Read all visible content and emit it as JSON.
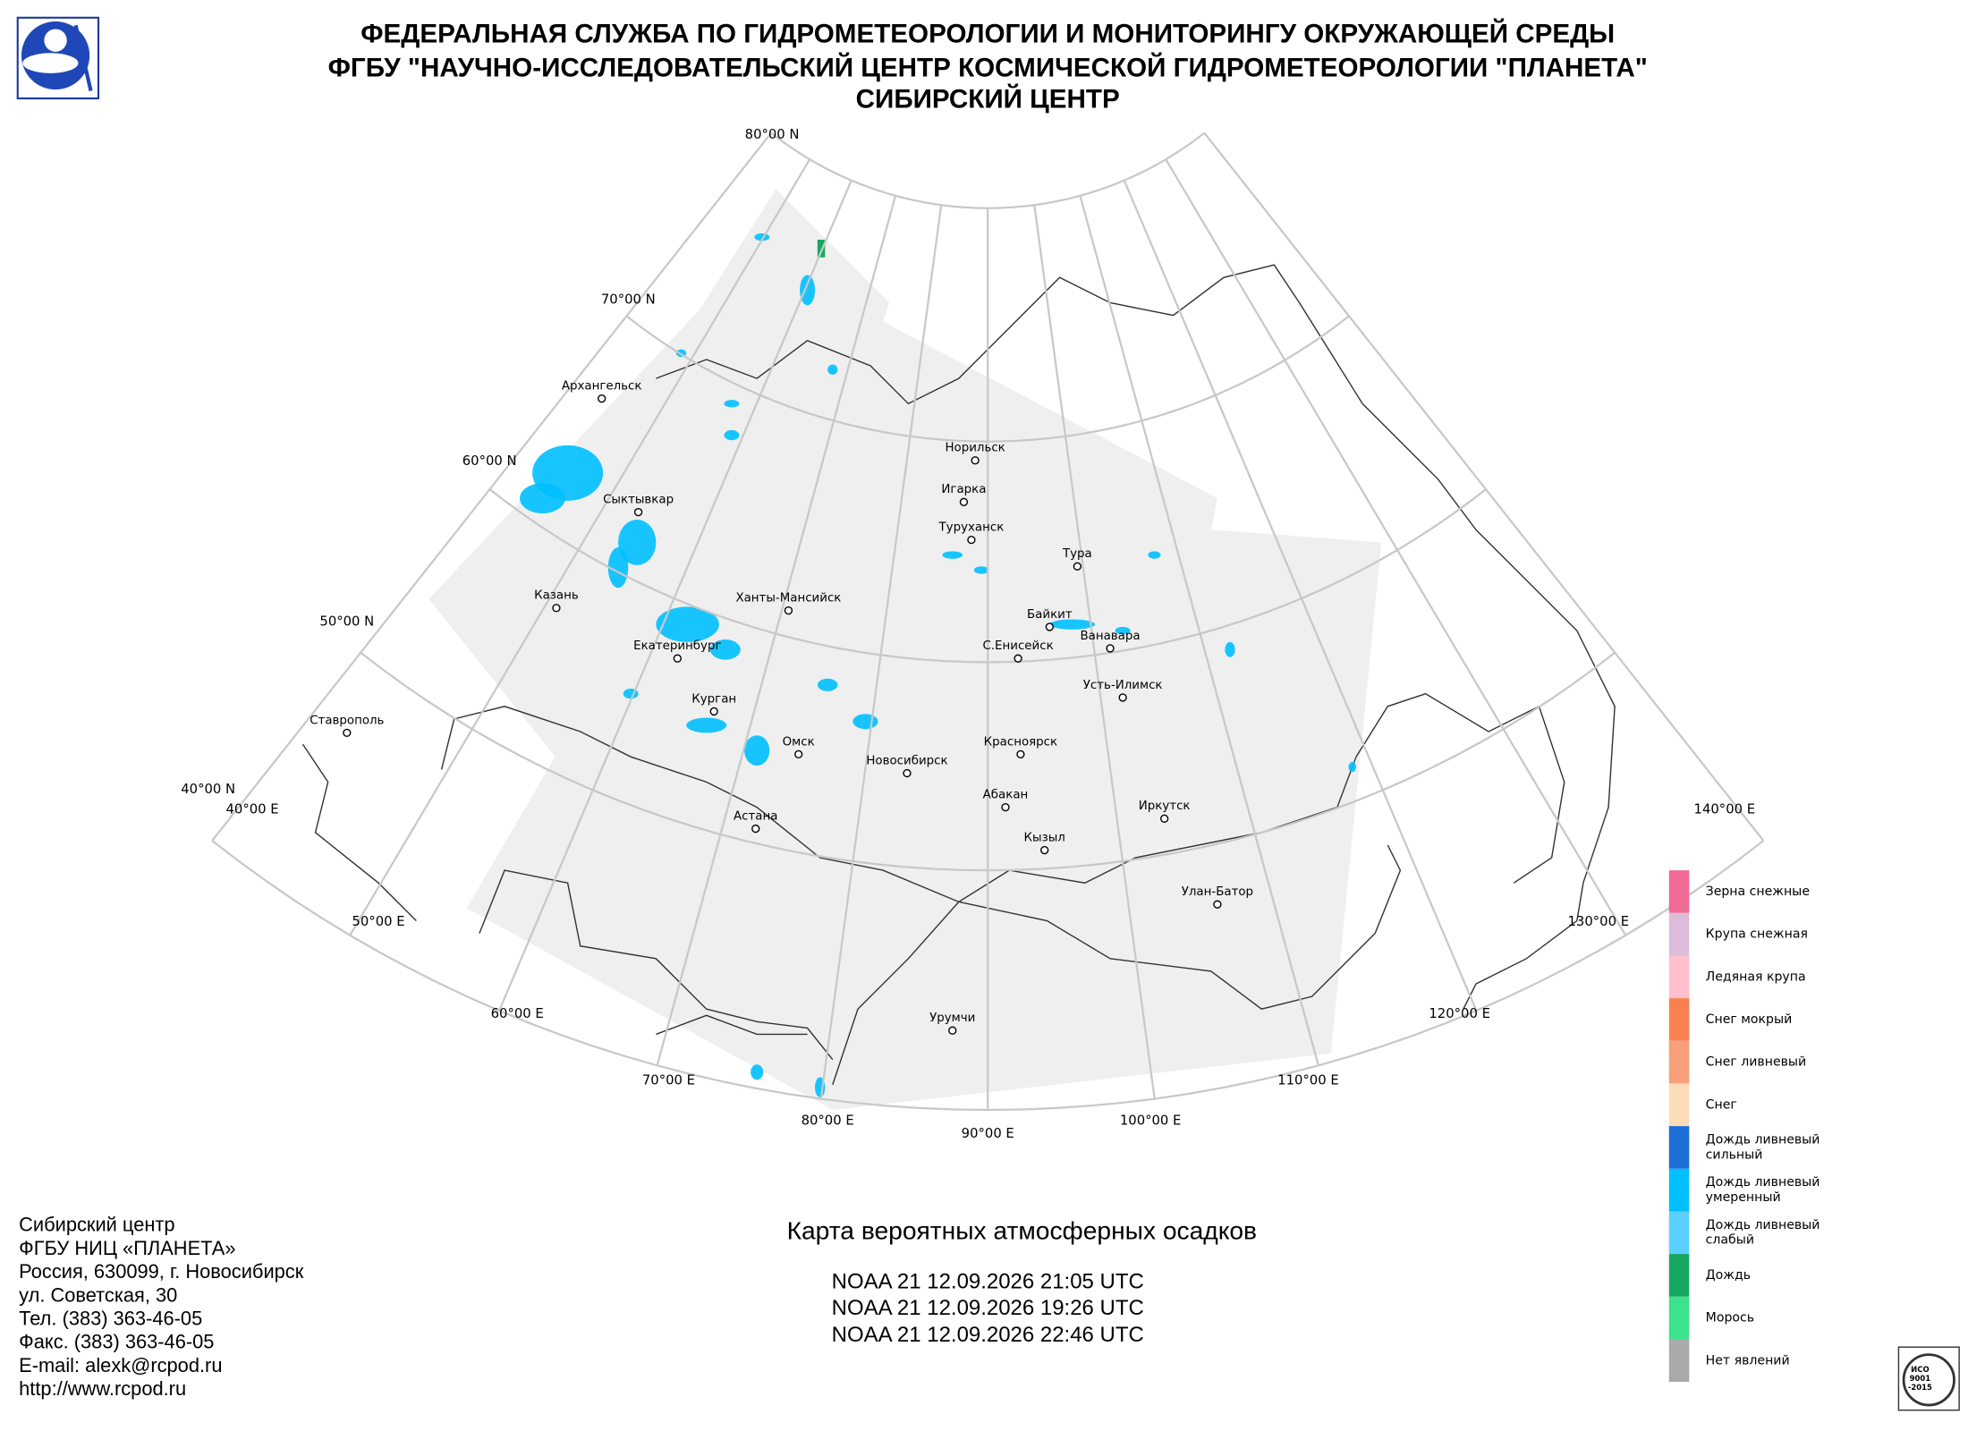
{
  "header": {
    "lines": [
      "ФЕДЕРАЛЬНАЯ СЛУЖБА ПО ГИДРОМЕТЕОРОЛОГИИ И МОНИТОРИНГУ ОКРУЖАЮЩЕЙ СРЕДЫ",
      "ФГБУ \"НАУЧНО-ИССЛЕДОВАТЕЛЬСКИЙ ЦЕНТР КОСМИЧЕСКОЙ ГИДРОМЕТЕОРОЛОГИИ \"ПЛАНЕТА\"",
      "СИБИРСКИЙ ЦЕНТР"
    ]
  },
  "graticule": {
    "latitudes": [
      "80°00 N",
      "70°00 N",
      "60°00 N",
      "50°00 N",
      "40°00 N"
    ],
    "longitudes": [
      "40°00 E",
      "50°00 E",
      "60°00 E",
      "70°00 E",
      "80°00 E",
      "90°00 E",
      "100°00 E",
      "110°00 E",
      "120°00 E",
      "130°00 E",
      "140°00 E"
    ]
  },
  "cities": [
    "Архангельск",
    "Сыктывкар",
    "Казань",
    "Ставрополь",
    "Ханты-Мансийск",
    "Екатеринбург",
    "Курган",
    "Омск",
    "Астана",
    "Новосибирск",
    "Норильск",
    "Игарка",
    "Туруханск",
    "Тура",
    "Байкит",
    "Ванавара",
    "С.Енисейск",
    "Усть-Илимск",
    "Красноярск",
    "Абакан",
    "Иркутск",
    "Кызыл",
    "Улан-Батор",
    "Урумчи"
  ],
  "title": "Карта вероятных атмосферных осадков",
  "passes": [
    "NOAA 21 12.09.2026  21:05 UTC",
    "NOAA 21 12.09.2026  19:26 UTC",
    "NOAA 21 12.09.2026  22:46 UTC"
  ],
  "legend": {
    "items": [
      {
        "label": [
          "Зерна снежные"
        ],
        "color": "#f06a96"
      },
      {
        "label": [
          "Крупа снежная"
        ],
        "color": "#dcbcd8"
      },
      {
        "label": [
          "Ледяная крупа"
        ],
        "color": "#ffbfcd"
      },
      {
        "label": [
          "Снег мокрый"
        ],
        "color": "#f98050"
      },
      {
        "label": [
          "Снег ливневый"
        ],
        "color": "#f8a07a"
      },
      {
        "label": [
          "Снег"
        ],
        "color": "#fddcb8"
      },
      {
        "label": [
          "Дождь ливневый",
          "сильный"
        ],
        "color": "#1e6ed8"
      },
      {
        "label": [
          "Дождь ливневый",
          "умеренный"
        ],
        "color": "#00bfff"
      },
      {
        "label": [
          "Дождь ливневый",
          "слабый"
        ],
        "color": "#5bcfff"
      },
      {
        "label": [
          "Дождь"
        ],
        "color": "#14a860"
      },
      {
        "label": [
          "Морось"
        ],
        "color": "#3de28c"
      },
      {
        "label": [
          "Нет явлений"
        ],
        "color": "#aaaaaa"
      }
    ]
  },
  "contacts": [
    "Сибирский центр",
    "ФГБУ НИЦ «ПЛАНЕТА»",
    "Россия, 630099, г. Новосибирск",
    "ул. Советская, 30",
    "Тел. (383) 363-46-05",
    "Факс. (383) 363-46-05",
    "E-mail: alexk@rcpod.ru",
    "http://www.rcpod.ru"
  ],
  "iso_badge": [
    "ИСО",
    "9001",
    "-2015"
  ]
}
